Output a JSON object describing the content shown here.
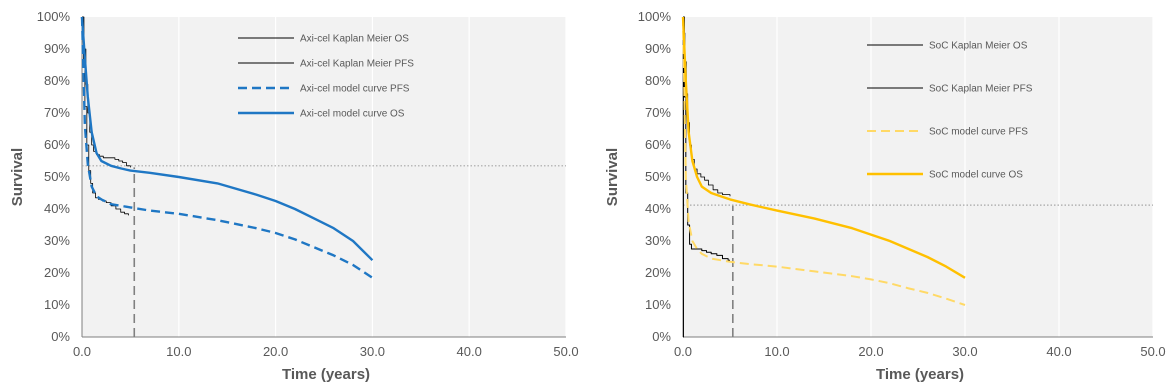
{
  "chart_data": [
    {
      "type": "line",
      "xlabel": "Time (years)",
      "ylabel": "Survival",
      "xlim": [
        0,
        50
      ],
      "ylim": [
        0,
        1
      ],
      "xticks": [
        0,
        10,
        20,
        30,
        40,
        50
      ],
      "xtick_labels": [
        "0.0",
        "10.0",
        "20.0",
        "30.0",
        "40.0",
        "50.0"
      ],
      "yticks": [
        0,
        0.1,
        0.2,
        0.3,
        0.4,
        0.5,
        0.6,
        0.7,
        0.8,
        0.9,
        1.0
      ],
      "ytick_labels": [
        "0%",
        "10%",
        "20%",
        "30%",
        "40%",
        "50%",
        "60%",
        "70%",
        "80%",
        "90%",
        "100%"
      ],
      "grid": "vertical",
      "legend_position": "top-right",
      "reference_lines": [
        {
          "orientation": "horizontal",
          "value": 0.535,
          "color": "#a6a6a6",
          "style": "dotted"
        },
        {
          "orientation": "vertical",
          "value": 5.4,
          "color": "#808080",
          "style": "dashed",
          "y_to": 0.53
        }
      ],
      "series": [
        {
          "name": "Axi-cel Kaplan Meier OS",
          "color": "#000000",
          "style": "solid",
          "width": 0.8,
          "step": true,
          "x": [
            0,
            0.2,
            0.4,
            0.6,
            0.8,
            1.0,
            1.2,
            1.5,
            1.8,
            2.2,
            2.6,
            3.0,
            3.4,
            3.8,
            4.2,
            4.6,
            5.0
          ],
          "y": [
            1.0,
            0.9,
            0.79,
            0.7,
            0.64,
            0.6,
            0.58,
            0.57,
            0.565,
            0.56,
            0.56,
            0.56,
            0.555,
            0.55,
            0.545,
            0.535,
            0.53
          ]
        },
        {
          "name": "Axi-cel Kaplan Meier PFS",
          "color": "#000000",
          "style": "solid",
          "width": 0.8,
          "step": true,
          "x": [
            0,
            0.15,
            0.3,
            0.5,
            0.7,
            0.9,
            1.1,
            1.4,
            1.7,
            2.1,
            2.5,
            3.0,
            3.5,
            4.0,
            4.4,
            4.8
          ],
          "y": [
            1.0,
            0.86,
            0.72,
            0.6,
            0.52,
            0.48,
            0.45,
            0.435,
            0.43,
            0.425,
            0.42,
            0.41,
            0.4,
            0.39,
            0.385,
            0.38
          ]
        },
        {
          "name": "Axi-cel model curve PFS",
          "color": "#1f77c4",
          "style": "dashed",
          "width": 2.4,
          "step": false,
          "x": [
            0,
            0.3,
            0.6,
            1,
            1.5,
            2,
            3,
            4,
            5,
            7,
            10,
            14,
            18,
            20,
            22,
            24,
            26,
            28,
            30
          ],
          "y": [
            1.0,
            0.66,
            0.54,
            0.47,
            0.44,
            0.43,
            0.415,
            0.41,
            0.405,
            0.395,
            0.385,
            0.365,
            0.34,
            0.325,
            0.305,
            0.28,
            0.255,
            0.225,
            0.185
          ]
        },
        {
          "name": "Axi-cel model curve OS",
          "color": "#1f77c4",
          "style": "solid",
          "width": 2.4,
          "step": false,
          "x": [
            0,
            0.3,
            0.6,
            1,
            1.5,
            2,
            3,
            4,
            5,
            7,
            10,
            14,
            18,
            20,
            22,
            24,
            26,
            28,
            30
          ],
          "y": [
            1.0,
            0.87,
            0.75,
            0.64,
            0.575,
            0.55,
            0.535,
            0.527,
            0.52,
            0.513,
            0.5,
            0.48,
            0.445,
            0.425,
            0.4,
            0.37,
            0.34,
            0.3,
            0.24
          ]
        }
      ]
    },
    {
      "type": "line",
      "xlabel": "Time (years)",
      "ylabel": "Survival",
      "xlim": [
        0,
        50
      ],
      "ylim": [
        0,
        1
      ],
      "xticks": [
        0,
        10,
        20,
        30,
        40,
        50
      ],
      "xtick_labels": [
        "0.0",
        "10.0",
        "20.0",
        "30.0",
        "40.0",
        "50.0"
      ],
      "yticks": [
        0,
        0.1,
        0.2,
        0.3,
        0.4,
        0.5,
        0.6,
        0.7,
        0.8,
        0.9,
        1.0
      ],
      "ytick_labels": [
        "0%",
        "10%",
        "20%",
        "30%",
        "40%",
        "50%",
        "60%",
        "70%",
        "80%",
        "90%",
        "100%"
      ],
      "grid": "vertical",
      "legend_position": "top-right",
      "reference_lines": [
        {
          "orientation": "horizontal",
          "value": 0.412,
          "color": "#a6a6a6",
          "style": "dotted"
        },
        {
          "orientation": "vertical",
          "value": 5.3,
          "color": "#808080",
          "style": "dashed",
          "y_to": 0.41
        }
      ],
      "series": [
        {
          "name": "SoC Kaplan Meier OS",
          "color": "#000000",
          "style": "solid",
          "width": 0.8,
          "step": true,
          "x": [
            0,
            0.1,
            0.2,
            0.35,
            0.5,
            0.7,
            0.9,
            1.2,
            1.5,
            1.9,
            2.3,
            2.7,
            3.2,
            3.7,
            4.2,
            5.0
          ],
          "y": [
            1.0,
            0.95,
            0.86,
            0.76,
            0.67,
            0.6,
            0.555,
            0.525,
            0.51,
            0.5,
            0.49,
            0.475,
            0.46,
            0.45,
            0.445,
            0.44
          ]
        },
        {
          "name": "SoC Kaplan Meier PFS",
          "color": "#000000",
          "style": "solid",
          "width": 1.0,
          "step": true,
          "x": [
            0,
            0.05,
            0.15,
            0.3,
            0.5,
            0.7,
            0.9,
            1.2,
            1.6,
            2.0,
            2.5,
            3.0,
            3.6,
            4.2,
            4.8,
            5.0
          ],
          "y": [
            0,
            1.0,
            0.75,
            0.45,
            0.35,
            0.29,
            0.275,
            0.275,
            0.275,
            0.27,
            0.265,
            0.26,
            0.255,
            0.245,
            0.24,
            0.24
          ]
        },
        {
          "name": "SoC model curve PFS",
          "color": "#ffd966",
          "style": "dashed",
          "width": 2.0,
          "step": false,
          "x": [
            0,
            0.3,
            0.6,
            1,
            1.5,
            2,
            3,
            4,
            5,
            7,
            10,
            14,
            18,
            20,
            22,
            24,
            26,
            28,
            30
          ],
          "y": [
            1.0,
            0.5,
            0.36,
            0.3,
            0.275,
            0.26,
            0.245,
            0.24,
            0.235,
            0.228,
            0.22,
            0.205,
            0.19,
            0.18,
            0.168,
            0.152,
            0.138,
            0.12,
            0.1
          ]
        },
        {
          "name": "SoC model curve OS",
          "color": "#ffc000",
          "style": "solid",
          "width": 2.4,
          "step": false,
          "x": [
            0,
            0.3,
            0.6,
            1,
            1.5,
            2,
            3,
            4,
            5,
            7,
            10,
            14,
            18,
            20,
            22,
            24,
            26,
            28,
            30
          ],
          "y": [
            1.0,
            0.8,
            0.64,
            0.55,
            0.5,
            0.47,
            0.45,
            0.44,
            0.43,
            0.415,
            0.395,
            0.37,
            0.34,
            0.32,
            0.3,
            0.275,
            0.25,
            0.22,
            0.185
          ]
        }
      ]
    }
  ]
}
